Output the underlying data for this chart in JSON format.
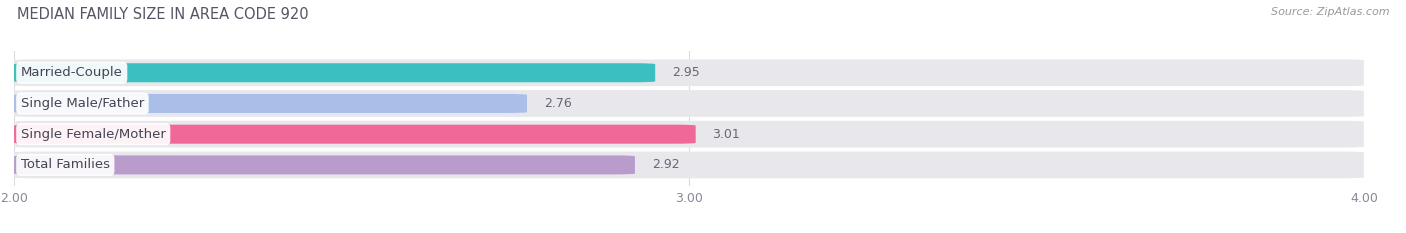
{
  "title": "MEDIAN FAMILY SIZE IN AREA CODE 920",
  "source": "Source: ZipAtlas.com",
  "categories": [
    "Married-Couple",
    "Single Male/Father",
    "Single Female/Mother",
    "Total Families"
  ],
  "values": [
    2.95,
    2.76,
    3.01,
    2.92
  ],
  "bar_colors": [
    "#3cbfbf",
    "#aabfe8",
    "#f06898",
    "#b99ccb"
  ],
  "xlim": [
    2.0,
    4.0
  ],
  "xticks": [
    2.0,
    3.0,
    4.0
  ],
  "xtick_labels": [
    "2.00",
    "3.00",
    "4.00"
  ],
  "bar_height": 0.62,
  "label_fontsize": 9.5,
  "title_fontsize": 10.5,
  "value_fontsize": 9,
  "background_color": "#ffffff",
  "bar_bg_color": "#e8e8ec",
  "separator_color": "#ffffff",
  "title_color": "#555566",
  "value_color": "#666677",
  "label_color": "#444455"
}
